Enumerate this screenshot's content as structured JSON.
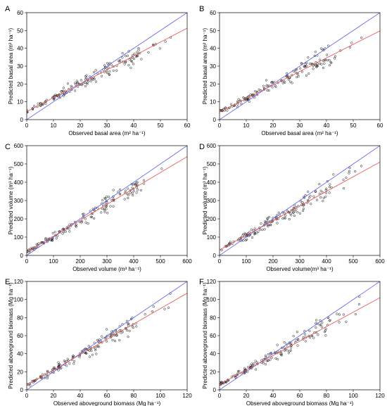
{
  "chart_data": [
    {
      "type": "scatter",
      "panel_label": "A",
      "xlabel": "Observed basal area (m² ha⁻¹)",
      "ylabel": "Predicted basal area (m² ha⁻¹)",
      "xlim": [
        0,
        60
      ],
      "ylim": [
        0,
        60
      ],
      "xticks": [
        0,
        10,
        20,
        30,
        40,
        50,
        60
      ],
      "yticks": [
        0,
        10,
        20,
        30,
        40,
        50,
        60
      ],
      "tick_labels_x": [
        "0",
        "10",
        "20",
        "30",
        "40",
        "50",
        "60"
      ],
      "tick_labels_y": [
        "0",
        "10",
        "20",
        "30",
        "40",
        "50",
        "60"
      ],
      "reference_line": {
        "intercept": 0,
        "slope": 1,
        "color": "#6a6cf0"
      },
      "fit_line": {
        "intercept": 4.5,
        "slope": 0.78,
        "color": "#f05a5a"
      },
      "grid": false,
      "seed": 11
    },
    {
      "type": "scatter",
      "panel_label": "B",
      "xlabel": "Observed basal area (m² ha⁻¹)",
      "ylabel": "Predicted basal area (m² ha⁻¹)",
      "xlim": [
        0,
        60
      ],
      "ylim": [
        0,
        60
      ],
      "xticks": [
        0,
        10,
        20,
        30,
        40,
        50,
        60
      ],
      "yticks": [
        0,
        10,
        20,
        30,
        40,
        50,
        60
      ],
      "tick_labels_x": [
        "0",
        "10",
        "20",
        "30",
        "40",
        "50",
        "60"
      ],
      "tick_labels_y": [
        "0",
        "10",
        "20",
        "30",
        "40",
        "50",
        "60"
      ],
      "reference_line": {
        "intercept": 0,
        "slope": 1,
        "color": "#6a6cf0"
      },
      "fit_line": {
        "intercept": 4.2,
        "slope": 0.76,
        "color": "#f05a5a"
      },
      "grid": false,
      "seed": 23
    },
    {
      "type": "scatter",
      "panel_label": "C",
      "xlabel": "Observed volume (m³ ha⁻¹)",
      "ylabel": "Predicted volume (m³ ha⁻¹)",
      "xlim": [
        0,
        600
      ],
      "ylim": [
        0,
        600
      ],
      "xticks": [
        0,
        100,
        200,
        300,
        400,
        500,
        600
      ],
      "yticks": [
        0,
        100,
        200,
        300,
        400,
        500,
        600
      ],
      "tick_labels_x": [
        "0",
        "100",
        "200",
        "300",
        "400",
        "500",
        "600"
      ],
      "tick_labels_y": [
        "0",
        "100",
        "200",
        "300",
        "400",
        "500",
        "600"
      ],
      "reference_line": {
        "intercept": 0,
        "slope": 1,
        "color": "#6a6cf0"
      },
      "fit_line": {
        "intercept": 18,
        "slope": 0.87,
        "color": "#f05a5a"
      },
      "grid": false,
      "seed": 37
    },
    {
      "type": "scatter",
      "panel_label": "D",
      "xlabel": "Observed volume(m³ ha⁻¹)",
      "ylabel": "Predicted volume (m³ ha⁻¹)",
      "xlim": [
        0,
        600
      ],
      "ylim": [
        0,
        600
      ],
      "xticks": [
        0,
        100,
        200,
        300,
        400,
        500,
        600
      ],
      "yticks": [
        0,
        100,
        200,
        300,
        400,
        500,
        600
      ],
      "tick_labels_x": [
        "0",
        "100",
        "200",
        "300",
        "400",
        "500",
        "600"
      ],
      "tick_labels_y": [
        "0",
        "100",
        "200",
        "300",
        "400",
        "500",
        "600"
      ],
      "reference_line": {
        "intercept": 0,
        "slope": 1,
        "color": "#6a6cf0"
      },
      "fit_line": {
        "intercept": 30,
        "slope": 0.8,
        "color": "#f05a5a"
      },
      "grid": false,
      "seed": 41
    },
    {
      "type": "scatter",
      "panel_label": "E",
      "xlabel": "Observed aboveground biomass (Mg ha⁻¹)",
      "ylabel": "Predicted aboveground biomass (Mg ha⁻¹)",
      "xlim": [
        0,
        120
      ],
      "ylim": [
        0,
        120
      ],
      "xticks": [
        0,
        20,
        40,
        60,
        80,
        100,
        120
      ],
      "yticks": [
        0,
        20,
        40,
        60,
        80,
        100,
        120
      ],
      "tick_labels_x": [
        "0",
        "20",
        "40",
        "60",
        "80",
        "100",
        "120"
      ],
      "tick_labels_y": [
        "0",
        "20",
        "40",
        "60",
        "80",
        "100",
        "120"
      ],
      "reference_line": {
        "intercept": 0,
        "slope": 1,
        "color": "#6a6cf0"
      },
      "fit_line": {
        "intercept": 5,
        "slope": 0.85,
        "color": "#f05a5a"
      },
      "grid": false,
      "seed": 53
    },
    {
      "type": "scatter",
      "panel_label": "F",
      "xlabel": "Observed aboveground biomass (Mg ha⁻¹)",
      "ylabel": "Predicted aboveground biomass (Mg ha⁻¹)",
      "xlim": [
        0,
        120
      ],
      "ylim": [
        0,
        120
      ],
      "xticks": [
        0,
        20,
        40,
        60,
        80,
        100,
        120
      ],
      "yticks": [
        0,
        20,
        40,
        60,
        80,
        100,
        120
      ],
      "tick_labels_x": [
        "0",
        "20",
        "40",
        "60",
        "80",
        "100",
        "120"
      ],
      "tick_labels_y": [
        "0",
        "20",
        "40",
        "60",
        "80",
        "100",
        "120"
      ],
      "reference_line": {
        "intercept": 0,
        "slope": 1,
        "color": "#6a6cf0"
      },
      "fit_line": {
        "intercept": 6,
        "slope": 0.8,
        "color": "#f05a5a"
      },
      "grid": false,
      "seed": 67
    }
  ]
}
